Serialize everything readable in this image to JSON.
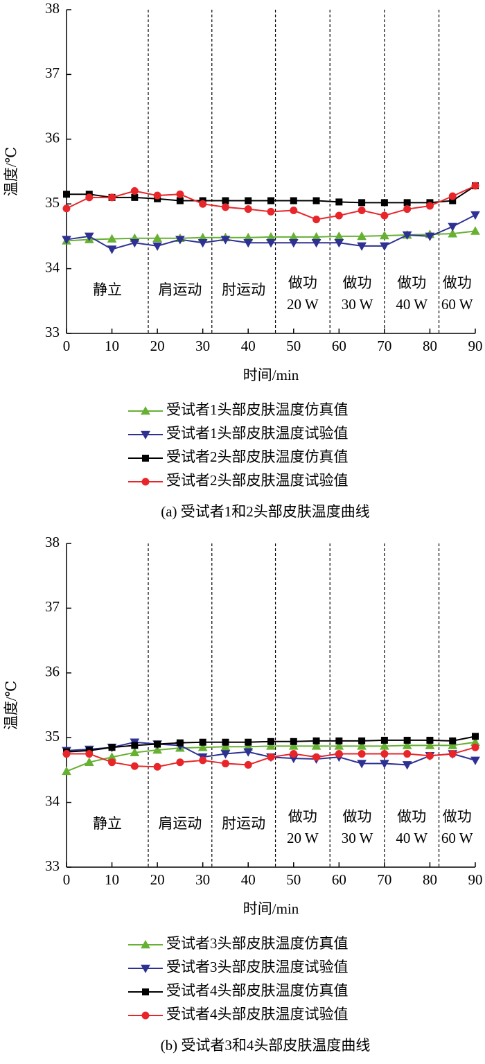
{
  "chart_data": [
    {
      "type": "line",
      "xlabel": "时间/min",
      "ylabel": "温度/℃",
      "caption": "(a) 受试者1和2头部皮肤温度曲线",
      "xlim": [
        0,
        90
      ],
      "ylim": [
        33,
        38
      ],
      "xticks": [
        0,
        10,
        20,
        30,
        40,
        50,
        60,
        70,
        80,
        90
      ],
      "yticks": [
        33,
        34,
        35,
        36,
        37,
        38
      ],
      "phase_bounds": [
        18,
        32,
        46,
        58,
        70,
        82
      ],
      "phase_labels": [
        [
          "静立"
        ],
        [
          "肩运动"
        ],
        [
          "肘运动"
        ],
        [
          "做功",
          "20 W"
        ],
        [
          "做功",
          "30 W"
        ],
        [
          "做功",
          "40 W"
        ],
        [
          "做功",
          "60 W"
        ]
      ],
      "x": [
        0,
        5,
        10,
        15,
        20,
        25,
        30,
        35,
        40,
        45,
        50,
        55,
        60,
        65,
        70,
        75,
        80,
        85,
        90
      ],
      "series": [
        {
          "name": "受试者1头部皮肤温度仿真值",
          "color": "#66b032",
          "marker": "triangle-up",
          "values": [
            34.43,
            34.45,
            34.46,
            34.47,
            34.47,
            34.47,
            34.48,
            34.48,
            34.48,
            34.49,
            34.49,
            34.49,
            34.5,
            34.5,
            34.51,
            34.52,
            34.53,
            34.54,
            34.58
          ]
        },
        {
          "name": "受试者1头部皮肤温度试验值",
          "color": "#2e3192",
          "marker": "triangle-down",
          "values": [
            34.45,
            34.5,
            34.3,
            34.4,
            34.35,
            34.45,
            34.4,
            34.45,
            34.4,
            34.4,
            34.4,
            34.4,
            34.4,
            34.35,
            34.35,
            34.52,
            34.5,
            34.65,
            34.83
          ]
        },
        {
          "name": "受试者2头部皮肤温度仿真值",
          "color": "#000000",
          "marker": "square",
          "values": [
            35.15,
            35.15,
            35.1,
            35.1,
            35.08,
            35.05,
            35.05,
            35.05,
            35.05,
            35.05,
            35.05,
            35.05,
            35.03,
            35.02,
            35.02,
            35.02,
            35.02,
            35.05,
            35.28
          ]
        },
        {
          "name": "受试者2头部皮肤温度试验值",
          "color": "#e8262a",
          "marker": "circle",
          "values": [
            34.93,
            35.1,
            35.1,
            35.2,
            35.13,
            35.15,
            35.0,
            34.95,
            34.92,
            34.88,
            34.9,
            34.76,
            34.82,
            34.9,
            34.82,
            34.92,
            34.97,
            35.12,
            35.28
          ]
        }
      ]
    },
    {
      "type": "line",
      "xlabel": "时间/min",
      "ylabel": "温度/℃",
      "caption": "(b) 受试者3和4头部皮肤温度曲线",
      "xlim": [
        0,
        90
      ],
      "ylim": [
        33,
        38
      ],
      "xticks": [
        0,
        10,
        20,
        30,
        40,
        50,
        60,
        70,
        80,
        90
      ],
      "yticks": [
        33,
        34,
        35,
        36,
        37,
        38
      ],
      "phase_bounds": [
        18,
        32,
        46,
        58,
        70,
        82
      ],
      "phase_labels": [
        [
          "静立"
        ],
        [
          "肩运动"
        ],
        [
          "肘运动"
        ],
        [
          "做功",
          "20 W"
        ],
        [
          "做功",
          "30 W"
        ],
        [
          "做功",
          "40 W"
        ],
        [
          "做功",
          "60 W"
        ]
      ],
      "x": [
        0,
        5,
        10,
        15,
        20,
        25,
        30,
        35,
        40,
        45,
        50,
        55,
        60,
        65,
        70,
        75,
        80,
        85,
        90
      ],
      "series": [
        {
          "name": "受试者3头部皮肤温度仿真值",
          "color": "#66b032",
          "marker": "triangle-up",
          "values": [
            34.48,
            34.62,
            34.7,
            34.77,
            34.81,
            34.84,
            34.85,
            34.86,
            34.86,
            34.87,
            34.87,
            34.87,
            34.87,
            34.87,
            34.87,
            34.88,
            34.88,
            34.88,
            34.93
          ]
        },
        {
          "name": "受试者3头部皮肤温度试验值",
          "color": "#2e3192",
          "marker": "triangle-down",
          "values": [
            34.8,
            34.82,
            34.85,
            34.93,
            34.9,
            34.88,
            34.7,
            34.75,
            34.78,
            34.7,
            34.68,
            34.67,
            34.7,
            34.6,
            34.6,
            34.58,
            34.72,
            34.75,
            34.65
          ]
        },
        {
          "name": "受试者4头部皮肤温度仿真值",
          "color": "#000000",
          "marker": "square",
          "values": [
            34.78,
            34.8,
            34.85,
            34.88,
            34.9,
            34.92,
            34.93,
            34.93,
            34.93,
            34.94,
            34.94,
            34.95,
            34.95,
            34.95,
            34.96,
            34.96,
            34.96,
            34.95,
            35.02
          ]
        },
        {
          "name": "受试者4头部皮肤温度试验值",
          "color": "#e8262a",
          "marker": "circle",
          "values": [
            34.75,
            34.75,
            34.62,
            34.56,
            34.55,
            34.62,
            34.65,
            34.6,
            34.58,
            34.7,
            34.75,
            34.7,
            34.75,
            34.75,
            34.75,
            34.75,
            34.72,
            34.75,
            34.85
          ]
        }
      ]
    }
  ]
}
